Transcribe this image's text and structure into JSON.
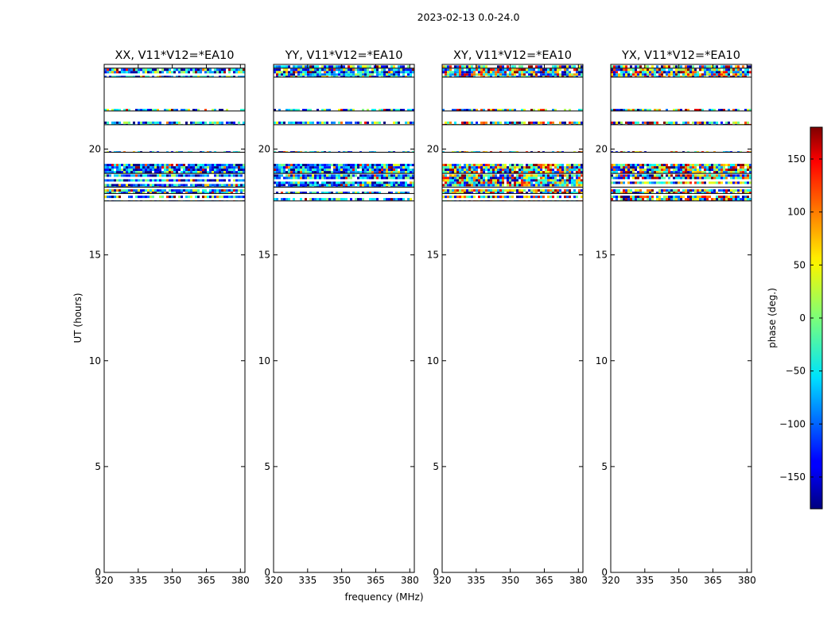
{
  "chart_data": {
    "type": "heatmap",
    "suptitle": "2023-02-13 0.0-24.0",
    "xlabel": "frequency (MHz)",
    "ylabel": "UT (hours)",
    "xlim": [
      320,
      382
    ],
    "ylim": [
      0,
      24
    ],
    "xticks": [
      320,
      335,
      350,
      365,
      380
    ],
    "yticks": [
      0,
      5,
      10,
      15,
      20
    ],
    "panels": [
      {
        "title": "XX, V11*V12=*EA10",
        "pol": "XX"
      },
      {
        "title": "YY, V11*V12=*EA10",
        "pol": "YY"
      },
      {
        "title": "XY, V11*V12=*EA10",
        "pol": "XY"
      },
      {
        "title": "YX, V11*V12=*EA10",
        "pol": "YX"
      }
    ],
    "data_bands_ut_hours": [
      {
        "start": 23.4,
        "end": 23.8,
        "density": 0.9
      },
      {
        "start": 23.82,
        "end": 23.95,
        "density": 0.7
      },
      {
        "start": 21.8,
        "end": 21.9,
        "density": 0.75
      },
      {
        "start": 21.15,
        "end": 21.3,
        "density": 0.8
      },
      {
        "start": 19.85,
        "end": 19.9,
        "density": 0.5
      },
      {
        "start": 18.85,
        "end": 19.3,
        "density": 0.95
      },
      {
        "start": 18.2,
        "end": 18.8,
        "density": 0.95
      },
      {
        "start": 17.9,
        "end": 18.1,
        "density": 0.85
      },
      {
        "start": 17.55,
        "end": 17.8,
        "density": 0.85
      }
    ],
    "colorbar": {
      "label": "phase (deg.)",
      "range": [
        -180,
        180
      ],
      "ticks": [
        -150,
        -100,
        -50,
        0,
        50,
        100,
        150
      ],
      "tick_labels": [
        "−150",
        "−100",
        "−50",
        "0",
        "50",
        "100",
        "150"
      ],
      "colormap": "jet"
    }
  }
}
